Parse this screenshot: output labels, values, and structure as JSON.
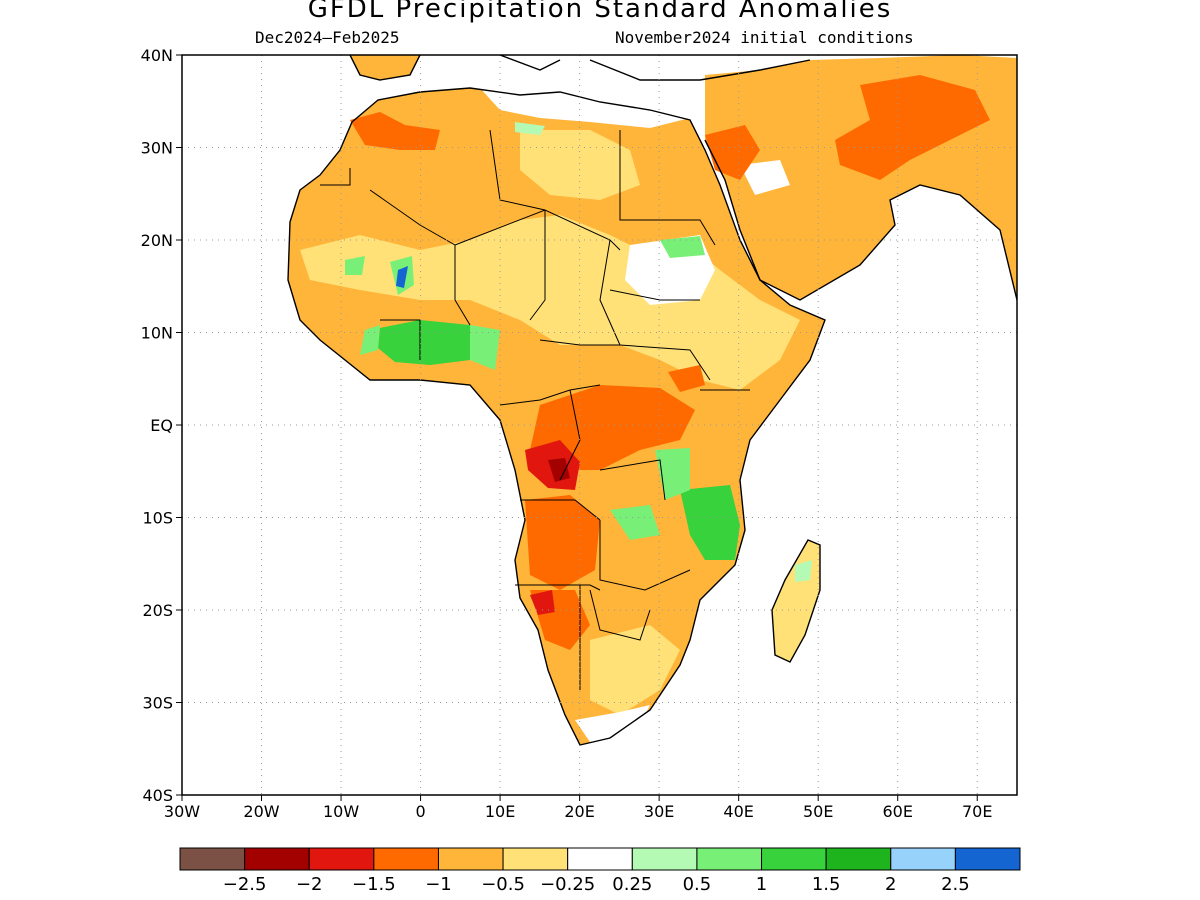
{
  "title": "GFDL Precipitation Standard Anomalies",
  "subtitle_left": "Dec2024–Feb2025",
  "subtitle_right": "November2024 initial conditions",
  "map": {
    "lon_range": [
      -30,
      75
    ],
    "lat_range": [
      -40,
      40
    ],
    "lat_ticks": [
      {
        "value": 40,
        "label": "40N"
      },
      {
        "value": 30,
        "label": "30N"
      },
      {
        "value": 20,
        "label": "20N"
      },
      {
        "value": 10,
        "label": "10N"
      },
      {
        "value": 0,
        "label": "EQ"
      },
      {
        "value": -10,
        "label": "10S"
      },
      {
        "value": -20,
        "label": "20S"
      },
      {
        "value": -30,
        "label": "30S"
      },
      {
        "value": -40,
        "label": "40S"
      }
    ],
    "lon_ticks": [
      {
        "value": -30,
        "label": "30W"
      },
      {
        "value": -20,
        "label": "20W"
      },
      {
        "value": -10,
        "label": "10W"
      },
      {
        "value": 0,
        "label": "0"
      },
      {
        "value": 10,
        "label": "10E"
      },
      {
        "value": 20,
        "label": "20E"
      },
      {
        "value": 30,
        "label": "30E"
      },
      {
        "value": 40,
        "label": "40E"
      },
      {
        "value": 50,
        "label": "50E"
      },
      {
        "value": 60,
        "label": "60E"
      },
      {
        "value": 70,
        "label": "70E"
      }
    ],
    "grid": true
  },
  "colorbar": {
    "colors": [
      "#7b5145",
      "#a30000",
      "#e0160f",
      "#ff6a00",
      "#ffb43a",
      "#ffe178",
      "#ffffff",
      "#b4fab4",
      "#78f078",
      "#37d23c",
      "#1eb41e",
      "#96d2fa",
      "#1464d2"
    ],
    "labels": [
      "−2.5",
      "−2",
      "−1.5",
      "−1",
      "−0.5",
      "−0.25",
      "0.25",
      "0.5",
      "1",
      "1.5",
      "2",
      "2.5"
    ]
  }
}
